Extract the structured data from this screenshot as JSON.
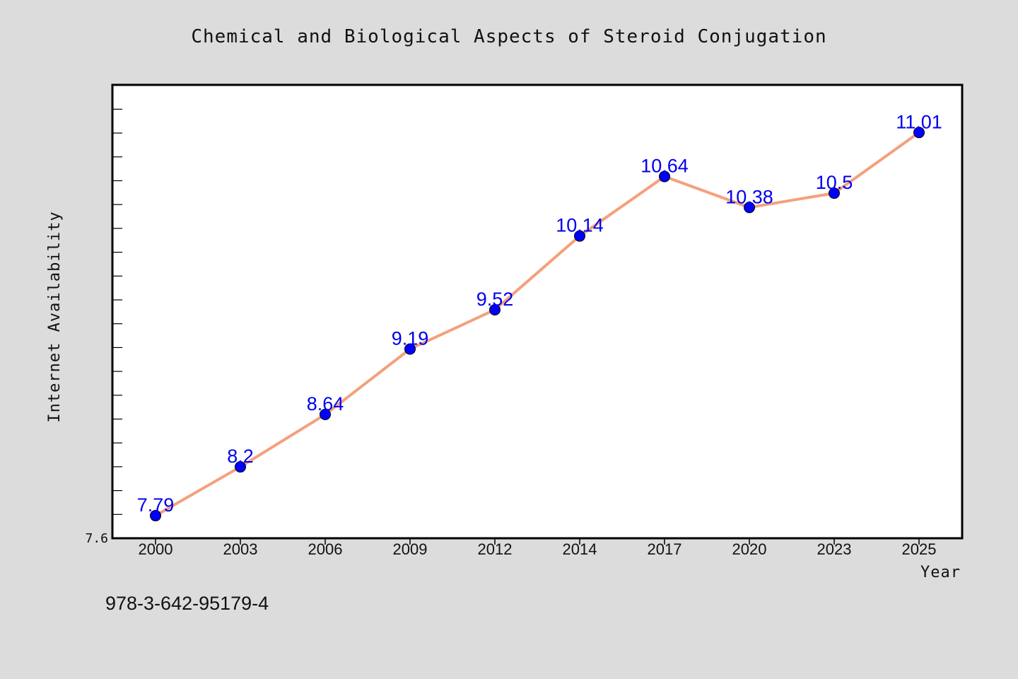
{
  "chart_data": {
    "type": "line",
    "title": "Chemical and Biological Aspects of Steroid Conjugation",
    "xlabel": "Year",
    "ylabel": "Internet Availability",
    "categories": [
      "2000",
      "2003",
      "2006",
      "2009",
      "2012",
      "2014",
      "2017",
      "2020",
      "2023",
      "2025"
    ],
    "series": [
      {
        "values": [
          7.79,
          8.2,
          8.64,
          9.19,
          9.52,
          10.14,
          10.64,
          10.38,
          10.5,
          11.01
        ]
      }
    ],
    "ylim": [
      7.6,
      11.41
    ],
    "ytick_labels": [
      {
        "value": 7.6,
        "label": "7.6"
      }
    ],
    "grid": false,
    "legend": "none",
    "colors": {
      "line": "#f4a07c",
      "marker": "#0000ff",
      "label": "#0000ee",
      "background": "#dcdcdc",
      "plot_background": "#ffffff"
    }
  },
  "footer": {
    "isbn": "978-3-642-95179-4"
  }
}
